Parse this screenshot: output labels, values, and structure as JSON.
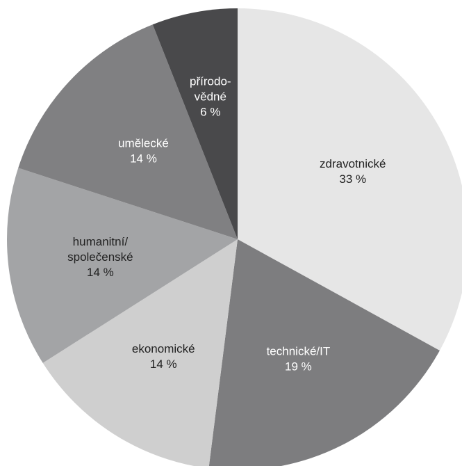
{
  "chart_data": {
    "type": "pie",
    "title": "",
    "slices": [
      {
        "label": "zdravotnické",
        "value_label": "33 %",
        "value": 33,
        "color": "#e6e6e6",
        "text_color": "#222222"
      },
      {
        "label": "technické/IT",
        "value_label": "19 %",
        "value": 19,
        "color": "#7d7d7f",
        "text_color": "#ffffff"
      },
      {
        "label": "ekonomické",
        "value_label": "14 %",
        "value": 14,
        "color": "#cfcfcf",
        "text_color": "#222222"
      },
      {
        "label": "humanitní/ společenské",
        "label_lines": [
          "humanitní/",
          "společenské"
        ],
        "value_label": "14 %",
        "value": 14,
        "color": "#a3a4a6",
        "text_color": "#222222"
      },
      {
        "label": "umělecké",
        "value_label": "14 %",
        "value": 14,
        "color": "#808082",
        "text_color": "#ffffff"
      },
      {
        "label": "přírodo- vědné",
        "label_lines": [
          "přírodo-",
          "vědné"
        ],
        "value_label": "6 %",
        "value": 6,
        "color": "#49494b",
        "text_color": "#ffffff"
      }
    ],
    "start": "12 o'clock",
    "direction": "clockwise",
    "legend": "none"
  }
}
